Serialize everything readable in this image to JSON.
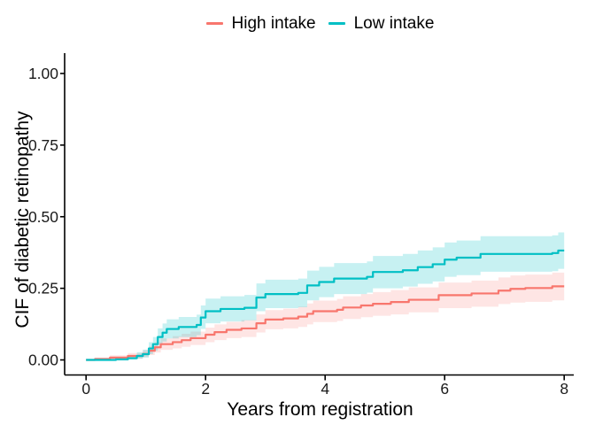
{
  "chart_data": {
    "type": "line",
    "subtype": "step-function cumulative incidence curves with confidence ribbons",
    "title": "",
    "xlabel": "Years from registration",
    "ylabel": "CIF of diabetic retinopathy",
    "xlim": [
      0,
      8
    ],
    "ylim": [
      0,
      1
    ],
    "grid": false,
    "legend_position": "top-center",
    "x_ticks": [
      {
        "label": "0",
        "value": 0
      },
      {
        "label": "2",
        "value": 2
      },
      {
        "label": "4",
        "value": 4
      },
      {
        "label": "6",
        "value": 6
      },
      {
        "label": "8",
        "value": 8
      }
    ],
    "y_ticks": [
      {
        "label": "0.00",
        "value": 0.0
      },
      {
        "label": "0.25",
        "value": 0.25
      },
      {
        "label": "0.50",
        "value": 0.5
      },
      {
        "label": "0.75",
        "value": 0.75
      },
      {
        "label": "1.00",
        "value": 1.0
      }
    ],
    "colors": {
      "axis": "#000000",
      "tick_text": "#1a1a1a",
      "background": "#ffffff"
    },
    "series": [
      {
        "name": "High intake",
        "color": "#F8766D",
        "band_color": "rgba(248,118,109,0.19)",
        "points_format": [
          "years",
          "cif_estimate",
          "ci_lower",
          "ci_upper"
        ],
        "points": [
          [
            0.0,
            0.0,
            0.0,
            0.0
          ],
          [
            0.15,
            0.003,
            0.0,
            0.008
          ],
          [
            0.4,
            0.008,
            0.002,
            0.016
          ],
          [
            0.7,
            0.014,
            0.005,
            0.024
          ],
          [
            0.95,
            0.021,
            0.01,
            0.034
          ],
          [
            1.05,
            0.032,
            0.017,
            0.047
          ],
          [
            1.15,
            0.044,
            0.026,
            0.062
          ],
          [
            1.25,
            0.055,
            0.035,
            0.075
          ],
          [
            1.45,
            0.062,
            0.04,
            0.083
          ],
          [
            1.6,
            0.069,
            0.046,
            0.091
          ],
          [
            1.75,
            0.076,
            0.052,
            0.099
          ],
          [
            2.0,
            0.088,
            0.062,
            0.113
          ],
          [
            2.15,
            0.097,
            0.069,
            0.124
          ],
          [
            2.35,
            0.105,
            0.076,
            0.133
          ],
          [
            2.6,
            0.11,
            0.08,
            0.139
          ],
          [
            2.85,
            0.128,
            0.096,
            0.159
          ],
          [
            3.0,
            0.141,
            0.107,
            0.174
          ],
          [
            3.3,
            0.145,
            0.11,
            0.179
          ],
          [
            3.55,
            0.151,
            0.115,
            0.186
          ],
          [
            3.7,
            0.161,
            0.124,
            0.197
          ],
          [
            3.8,
            0.17,
            0.132,
            0.207
          ],
          [
            4.2,
            0.175,
            0.136,
            0.213
          ],
          [
            4.3,
            0.183,
            0.143,
            0.222
          ],
          [
            4.6,
            0.19,
            0.149,
            0.23
          ],
          [
            4.8,
            0.196,
            0.154,
            0.237
          ],
          [
            5.1,
            0.202,
            0.159,
            0.244
          ],
          [
            5.4,
            0.21,
            0.166,
            0.253
          ],
          [
            5.9,
            0.226,
            0.181,
            0.27
          ],
          [
            6.45,
            0.232,
            0.186,
            0.277
          ],
          [
            6.9,
            0.242,
            0.195,
            0.288
          ],
          [
            7.1,
            0.248,
            0.2,
            0.295
          ],
          [
            7.35,
            0.251,
            0.203,
            0.298
          ],
          [
            7.8,
            0.257,
            0.208,
            0.305
          ],
          [
            8.0,
            0.257,
            0.208,
            0.305
          ]
        ]
      },
      {
        "name": "Low intake",
        "color": "#00BFC4",
        "band_color": "rgba(0,191,196,0.22)",
        "points_format": [
          "years",
          "cif_estimate",
          "ci_lower",
          "ci_upper"
        ],
        "points": [
          [
            0.0,
            0.0,
            0.0,
            0.0
          ],
          [
            0.5,
            0.002,
            0.0,
            0.006
          ],
          [
            0.7,
            0.006,
            0.001,
            0.014
          ],
          [
            0.85,
            0.014,
            0.004,
            0.027
          ],
          [
            0.95,
            0.02,
            0.008,
            0.036
          ],
          [
            1.05,
            0.04,
            0.02,
            0.062
          ],
          [
            1.12,
            0.055,
            0.032,
            0.08
          ],
          [
            1.2,
            0.08,
            0.052,
            0.11
          ],
          [
            1.28,
            0.095,
            0.064,
            0.127
          ],
          [
            1.35,
            0.108,
            0.075,
            0.142
          ],
          [
            1.55,
            0.115,
            0.08,
            0.15
          ],
          [
            1.85,
            0.122,
            0.086,
            0.158
          ],
          [
            1.92,
            0.148,
            0.108,
            0.19
          ],
          [
            2.0,
            0.17,
            0.128,
            0.214
          ],
          [
            2.25,
            0.178,
            0.134,
            0.222
          ],
          [
            2.65,
            0.182,
            0.138,
            0.227
          ],
          [
            2.85,
            0.218,
            0.17,
            0.267
          ],
          [
            3.0,
            0.23,
            0.181,
            0.28
          ],
          [
            3.55,
            0.234,
            0.184,
            0.284
          ],
          [
            3.7,
            0.26,
            0.208,
            0.312
          ],
          [
            3.9,
            0.272,
            0.219,
            0.325
          ],
          [
            4.15,
            0.284,
            0.23,
            0.338
          ],
          [
            4.7,
            0.29,
            0.235,
            0.344
          ],
          [
            4.8,
            0.307,
            0.25,
            0.363
          ],
          [
            5.3,
            0.313,
            0.256,
            0.37
          ],
          [
            5.55,
            0.324,
            0.266,
            0.382
          ],
          [
            5.8,
            0.334,
            0.274,
            0.393
          ],
          [
            6.0,
            0.35,
            0.29,
            0.41
          ],
          [
            6.2,
            0.357,
            0.296,
            0.417
          ],
          [
            6.6,
            0.37,
            0.308,
            0.432
          ],
          [
            7.8,
            0.373,
            0.31,
            0.435
          ],
          [
            7.9,
            0.382,
            0.318,
            0.445
          ],
          [
            8.0,
            0.382,
            0.318,
            0.445
          ]
        ]
      }
    ]
  }
}
